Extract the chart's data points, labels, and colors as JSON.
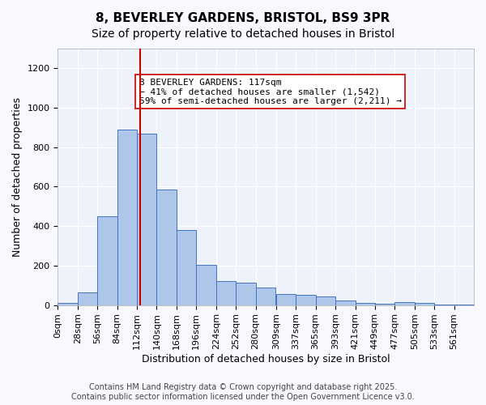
{
  "title_line1": "8, BEVERLEY GARDENS, BRISTOL, BS9 3PR",
  "title_line2": "Size of property relative to detached houses in Bristol",
  "xlabel": "Distribution of detached houses by size in Bristol",
  "ylabel": "Number of detached properties",
  "bar_values": [
    10,
    65,
    450,
    890,
    870,
    585,
    380,
    205,
    120,
    115,
    90,
    55,
    50,
    45,
    25,
    12,
    5,
    15,
    10,
    3,
    2,
    1
  ],
  "bin_edges": [
    0,
    28,
    56,
    84,
    112,
    140,
    168,
    196,
    224,
    252,
    280,
    309,
    337,
    365,
    393,
    421,
    449,
    477,
    505,
    533,
    561,
    589
  ],
  "tick_labels": [
    "0sqm",
    "28sqm",
    "56sqm",
    "84sqm",
    "112sqm",
    "140sqm",
    "168sqm",
    "196sqm",
    "224sqm",
    "252sqm",
    "280sqm",
    "309sqm",
    "337sqm",
    "365sqm",
    "393sqm",
    "421sqm",
    "449sqm",
    "477sqm",
    "505sqm",
    "533sqm",
    "561sqm"
  ],
  "bar_color": "#aec6e8",
  "bar_edgecolor": "#4472c4",
  "background_color": "#eef2fb",
  "grid_color": "#ffffff",
  "vline_x": 117,
  "vline_color": "#cc0000",
  "annotation_text": "8 BEVERLEY GARDENS: 117sqm\n← 41% of detached houses are smaller (1,542)\n59% of semi-detached houses are larger (2,211) →",
  "annotation_box_color": "#ffffff",
  "annotation_box_edgecolor": "#cc0000",
  "ylim": [
    0,
    1300
  ],
  "yticks": [
    0,
    200,
    400,
    600,
    800,
    1000,
    1200
  ],
  "footnote": "Contains HM Land Registry data © Crown copyright and database right 2025.\nContains public sector information licensed under the Open Government Licence v3.0.",
  "title_fontsize": 11,
  "subtitle_fontsize": 10,
  "axis_label_fontsize": 9,
  "tick_fontsize": 8,
  "annotation_fontsize": 8,
  "footnote_fontsize": 7
}
